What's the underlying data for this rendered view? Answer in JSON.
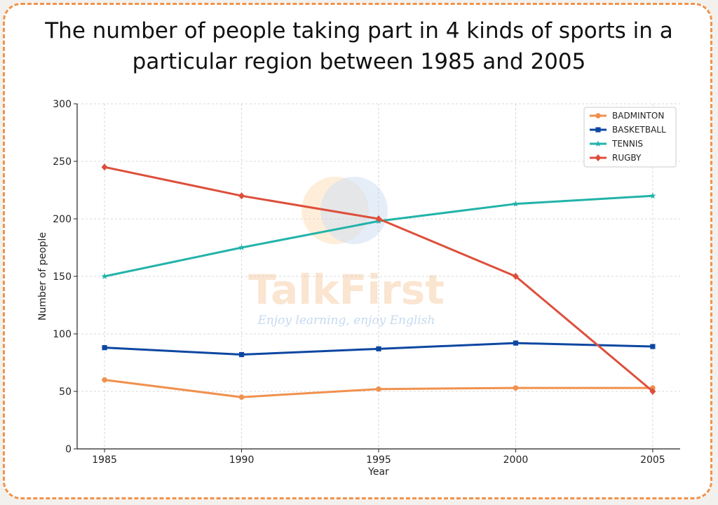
{
  "title_lines": [
    "The number of people taking part in 4 kinds of sports in a",
    "particular region between 1985 and 2005"
  ],
  "watermark": {
    "name": "TalkFirst",
    "tagline": "Enjoy learning, enjoy English",
    "colors": {
      "orange": "#f6c79a",
      "blue": "#9fc2e6"
    }
  },
  "border_color": "#f0934b",
  "chart_data": {
    "type": "line",
    "title": "",
    "xlabel": "Year",
    "ylabel": "Number of people",
    "x": [
      1985,
      1990,
      1995,
      2000,
      2005
    ],
    "xlim": [
      1984,
      2006
    ],
    "ylim": [
      0,
      300
    ],
    "yticks": [
      0,
      50,
      100,
      150,
      200,
      250,
      300
    ],
    "grid": true,
    "legend_position": "top-right",
    "series": [
      {
        "name": "BADMINTON",
        "values": [
          60,
          45,
          52,
          53,
          53
        ],
        "color": "#f0914e",
        "marker": "circle"
      },
      {
        "name": "BASKETBALL",
        "values": [
          88,
          82,
          87,
          92,
          89
        ],
        "color": "#0d47a1",
        "marker": "square"
      },
      {
        "name": "TENNIS",
        "values": [
          150,
          175,
          198,
          213,
          220
        ],
        "color": "#22b3a9",
        "marker": "star"
      },
      {
        "name": "RUGBY",
        "values": [
          245,
          220,
          200,
          150,
          50
        ],
        "color": "#dd4f3b",
        "marker": "diamond"
      }
    ]
  }
}
